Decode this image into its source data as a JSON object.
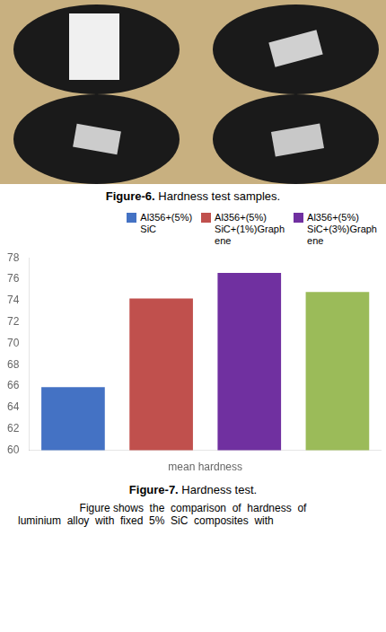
{
  "chart_data": {
    "type": "bar",
    "categories": [
      null,
      null,
      null,
      null
    ],
    "series": [
      {
        "name": "Al356+(5%)\nSiC",
        "color": "#4472c4",
        "values": [
          65.9,
          null,
          null,
          null
        ]
      },
      {
        "name": "Al356+(5%)\nSiC+(1%)Graph\nene",
        "color": "#c0504d",
        "values": [
          null,
          74.2,
          null,
          null
        ]
      },
      {
        "name": "Al356+(5%)\nSiC+(3%)Graph\nene",
        "color": "#7030a0",
        "values": [
          null,
          null,
          76.6,
          null
        ]
      },
      {
        "color": "#9bbb59",
        "values": [
          null,
          null,
          null,
          74.8
        ]
      }
    ],
    "x_label": "mean hardness",
    "ylim": [
      60,
      78
    ],
    "yticks": [
      60,
      62,
      64,
      66,
      68,
      70,
      72,
      74,
      76,
      78
    ],
    "grid": false,
    "legend": "upper right",
    "tick_labels": "y",
    "annotations": [
      "Figure-6. Hardness test samples.",
      "Figure-7. Hardness test.",
      "Figure shows  the  comparison  of  hardness  of",
      "luminium  alloy  with  fixed  5%  SiC  composites  with"
    ]
  }
}
